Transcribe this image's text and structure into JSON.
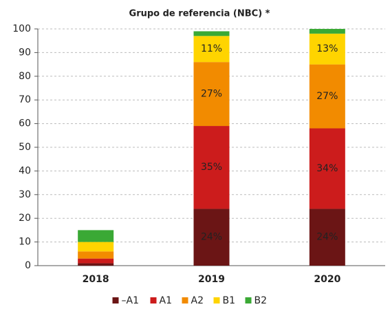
{
  "chart_data": {
    "type": "stacked_bar",
    "title": "Grupo de referencia (NBC) *",
    "categories": [
      "2018",
      "2019",
      "2020"
    ],
    "series": [
      {
        "name": "–A1",
        "color": "#6b1515",
        "values": [
          1,
          24,
          24
        ],
        "value_labels": [
          null,
          "24%",
          "24%"
        ]
      },
      {
        "name": "A1",
        "color": "#cc1c1c",
        "values": [
          2,
          35,
          34
        ],
        "value_labels": [
          null,
          "35%",
          "34%"
        ]
      },
      {
        "name": "A2",
        "color": "#f28b00",
        "values": [
          3,
          27,
          27
        ],
        "value_labels": [
          null,
          "27%",
          "27%"
        ]
      },
      {
        "name": "B1",
        "color": "#ffd400",
        "values": [
          4,
          11,
          13
        ],
        "value_labels": [
          null,
          "11%",
          "13%"
        ]
      },
      {
        "name": "B2",
        "color": "#3aa935",
        "values": [
          5,
          2,
          2
        ]
      }
    ],
    "ylim": [
      0,
      100
    ],
    "yticks": [
      0,
      10,
      20,
      30,
      40,
      50,
      60,
      70,
      80,
      90,
      100
    ],
    "grid": true,
    "legend": "bottom"
  }
}
